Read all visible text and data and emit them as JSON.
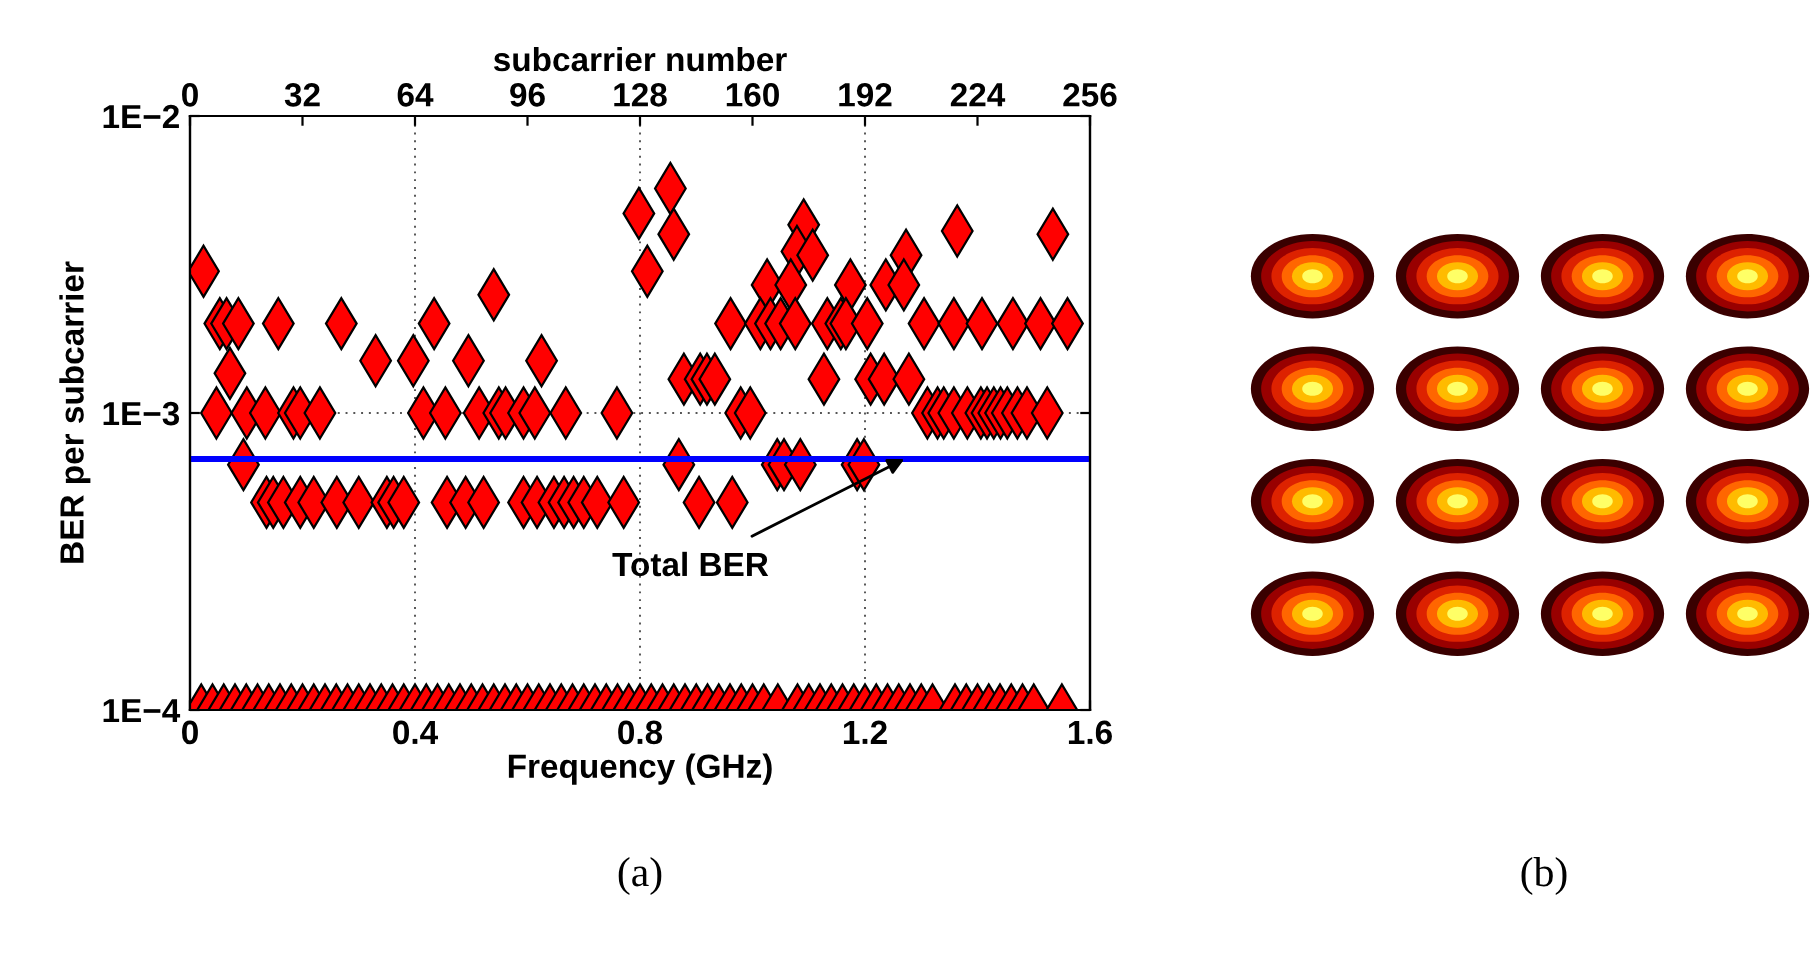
{
  "chart_data": {
    "type": "scatter",
    "xlabel": "Frequency (GHz)",
    "ylabel": "BER per subcarrier",
    "x2label": "subcarrier number",
    "log": "y",
    "grid": true,
    "marker": "diamond",
    "legend": false,
    "xlim": [
      0,
      1.6
    ],
    "xticks": [
      0,
      0.4,
      0.8,
      1.2,
      1.6
    ],
    "x2lim": [
      0,
      256
    ],
    "x2ticks": [
      0,
      32,
      64,
      96,
      128,
      160,
      192,
      224,
      256
    ],
    "ylim": [
      0.0001,
      0.01
    ],
    "yticks": [
      {
        "value": 0.0001,
        "label": "1E−4"
      },
      {
        "value": 0.001,
        "label": "1E−3"
      },
      {
        "value": 0.01,
        "label": "1E−2"
      }
    ],
    "ref_lines": [
      {
        "axis": "y",
        "value": 0.0007,
        "label": "Total BER",
        "color": "#0000ff"
      }
    ],
    "annotations": [
      "(a)",
      "(b)"
    ],
    "series": [
      {
        "color": "#ff0000",
        "x": [
          0.024,
          0.053,
          0.065,
          0.086,
          0.157,
          0.269,
          0.434,
          0.54,
          0.071,
          0.33,
          0.397,
          0.495,
          0.625,
          0.047,
          0.101,
          0.134,
          0.184,
          0.196,
          0.231,
          0.415,
          0.454,
          0.514,
          0.549,
          0.561,
          0.593,
          0.613,
          0.668,
          0.759,
          0.095,
          0.136,
          0.148,
          0.166,
          0.196,
          0.22,
          0.261,
          0.3,
          0.35,
          0.362,
          0.38,
          0.457,
          0.49,
          0.522,
          0.593,
          0.617,
          0.647,
          0.665,
          0.682,
          0.7,
          0.724,
          0.771,
          0.798,
          0.813,
          0.854,
          0.86,
          1.091,
          1.079,
          1.107,
          1.273,
          1.364,
          1.534,
          1.026,
          1.068,
          1.174,
          1.237,
          1.269,
          0.961,
          1.014,
          1.032,
          1.05,
          1.076,
          1.133,
          1.157,
          1.166,
          1.204,
          1.305,
          1.358,
          1.408,
          1.463,
          1.512,
          1.56,
          0.878,
          0.907,
          0.919,
          0.933,
          1.127,
          1.21,
          1.234,
          1.278,
          0.979,
          0.996,
          1.311,
          1.329,
          1.34,
          1.358,
          1.382,
          1.406,
          1.417,
          1.429,
          1.441,
          1.453,
          1.471,
          1.488,
          1.524,
          0.869,
          1.044,
          1.056,
          1.085,
          1.186,
          1.198,
          0.905,
          0.964,
          0.02,
          0.04,
          0.06,
          0.08,
          0.1,
          0.12,
          0.14,
          0.16,
          0.18,
          0.2,
          0.22,
          0.24,
          0.26,
          0.28,
          0.3,
          0.32,
          0.34,
          0.36,
          0.38,
          0.4,
          0.42,
          0.44,
          0.46,
          0.48,
          0.5,
          0.52,
          0.54,
          0.56,
          0.58,
          0.6,
          0.62,
          0.64,
          0.66,
          0.68,
          0.7,
          0.72,
          0.74,
          0.76,
          0.78,
          0.8,
          0.82,
          0.84,
          0.86,
          0.88,
          0.9,
          0.92,
          0.94,
          0.96,
          0.98,
          1.0,
          1.02,
          1.045,
          1.08,
          1.1,
          1.12,
          1.14,
          1.16,
          1.18,
          1.2,
          1.22,
          1.24,
          1.26,
          1.28,
          1.3,
          1.32,
          1.36,
          1.38,
          1.4,
          1.42,
          1.44,
          1.46,
          1.48,
          1.5,
          1.55
        ],
        "values": [
          0.003,
          0.002,
          0.002,
          0.002,
          0.002,
          0.002,
          0.002,
          0.0025,
          0.00136,
          0.0015,
          0.0015,
          0.0015,
          0.0015,
          0.001,
          0.001,
          0.001,
          0.001,
          0.001,
          0.001,
          0.001,
          0.001,
          0.001,
          0.001,
          0.001,
          0.001,
          0.001,
          0.001,
          0.001,
          0.00067,
          0.0005,
          0.0005,
          0.0005,
          0.0005,
          0.0005,
          0.0005,
          0.0005,
          0.0005,
          0.0005,
          0.0005,
          0.0005,
          0.0005,
          0.0005,
          0.0005,
          0.0005,
          0.0005,
          0.0005,
          0.0005,
          0.0005,
          0.0005,
          0.0005,
          0.0047,
          0.003,
          0.0057,
          0.004,
          0.0043,
          0.0035,
          0.0034,
          0.0034,
          0.0041,
          0.004,
          0.0027,
          0.0027,
          0.0027,
          0.0027,
          0.0027,
          0.002,
          0.002,
          0.002,
          0.002,
          0.002,
          0.002,
          0.002,
          0.002,
          0.002,
          0.002,
          0.002,
          0.002,
          0.002,
          0.002,
          0.002,
          0.0013,
          0.0013,
          0.0013,
          0.0013,
          0.0013,
          0.0013,
          0.0013,
          0.0013,
          0.001,
          0.001,
          0.001,
          0.001,
          0.001,
          0.001,
          0.001,
          0.001,
          0.001,
          0.001,
          0.001,
          0.001,
          0.001,
          0.001,
          0.001,
          0.00067,
          0.00067,
          0.00067,
          0.00067,
          0.00067,
          0.00067,
          0.0005,
          0.0005,
          0.0001,
          0.0001,
          0.0001,
          0.0001,
          0.0001,
          0.0001,
          0.0001,
          0.0001,
          0.0001,
          0.0001,
          0.0001,
          0.0001,
          0.0001,
          0.0001,
          0.0001,
          0.0001,
          0.0001,
          0.0001,
          0.0001,
          0.0001,
          0.0001,
          0.0001,
          0.0001,
          0.0001,
          0.0001,
          0.0001,
          0.0001,
          0.0001,
          0.0001,
          0.0001,
          0.0001,
          0.0001,
          0.0001,
          0.0001,
          0.0001,
          0.0001,
          0.0001,
          0.0001,
          0.0001,
          0.0001,
          0.0001,
          0.0001,
          0.0001,
          0.0001,
          0.0001,
          0.0001,
          0.0001,
          0.0001,
          0.0001,
          0.0001,
          0.0001,
          0.0001,
          0.0001,
          0.0001,
          0.0001,
          0.0001,
          0.0001,
          0.0001,
          0.0001,
          0.0001,
          0.0001,
          0.0001,
          0.0001,
          0.0001,
          0.0001,
          0.0001,
          0.0001,
          0.0001,
          0.0001,
          0.0001,
          0.0001,
          0.0001,
          0.0001,
          0.0001
        ]
      }
    ]
  }
}
